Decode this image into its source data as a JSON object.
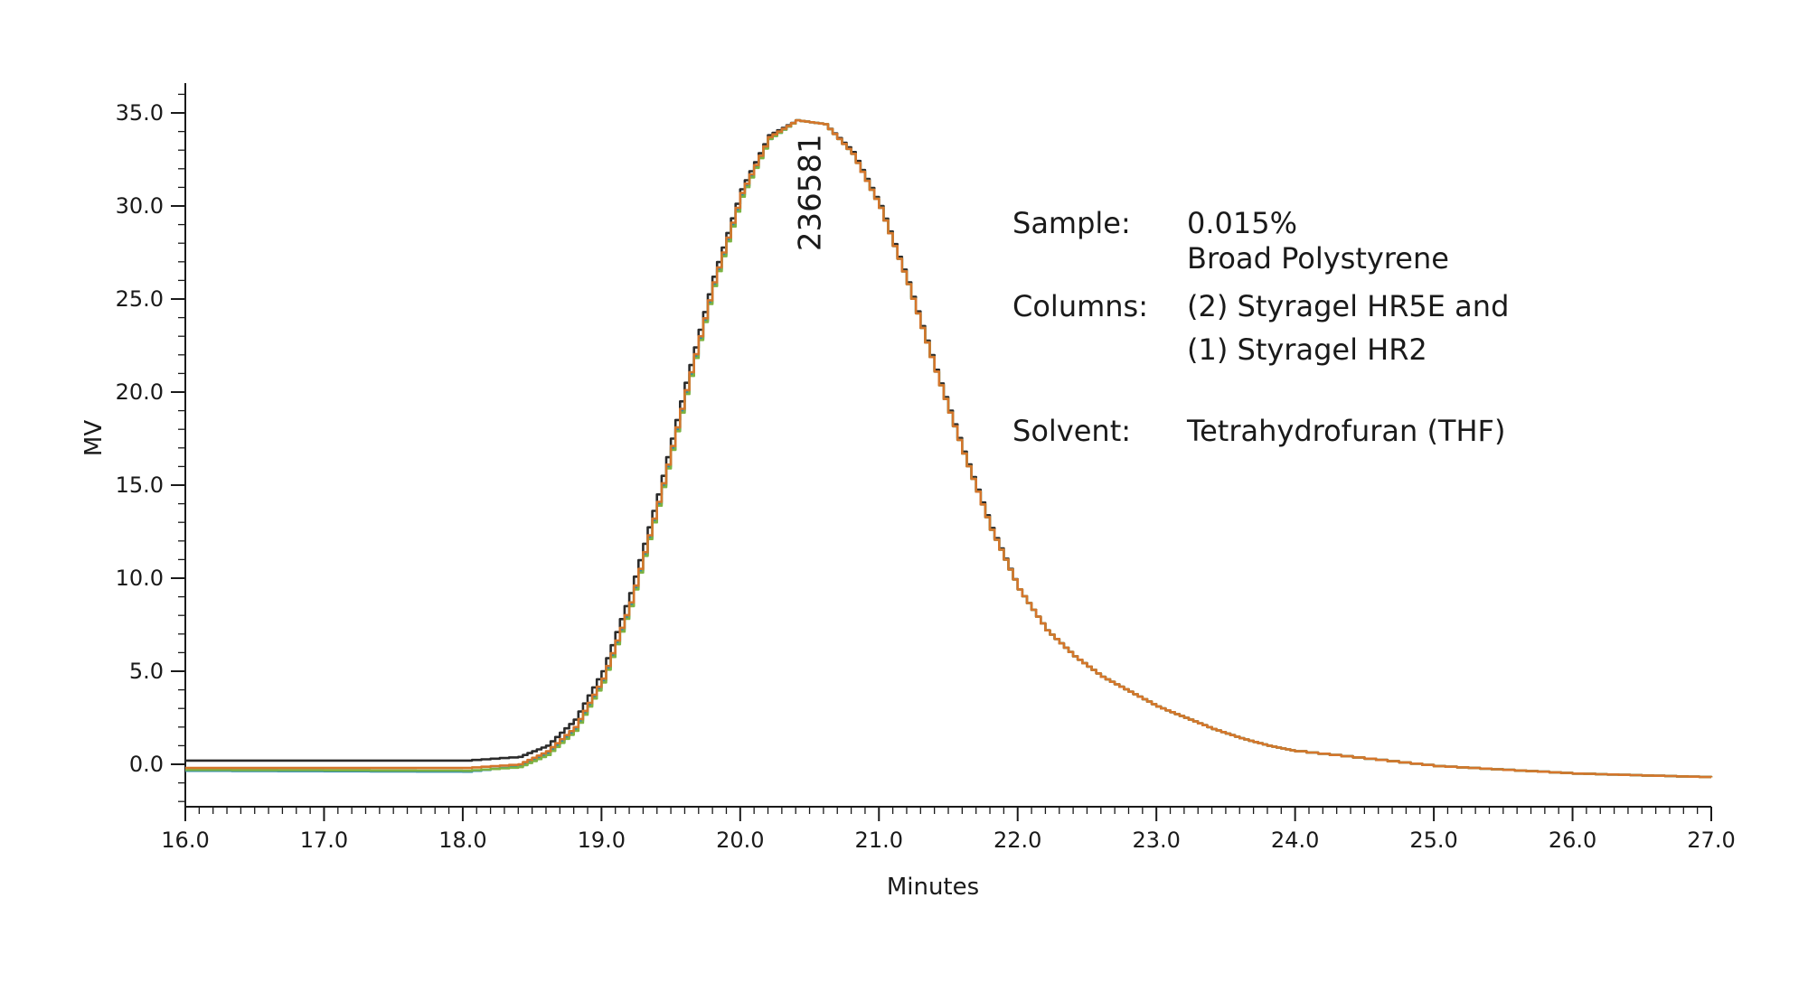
{
  "chart_data": {
    "type": "line",
    "xlabel": "Minutes",
    "ylabel": "MV",
    "xlim": [
      16.0,
      27.0
    ],
    "ylim": [
      -2.2,
      36.5
    ],
    "x_ticks": [
      "16.0",
      "17.0",
      "18.0",
      "19.0",
      "20.0",
      "21.0",
      "22.0",
      "23.0",
      "24.0",
      "25.0",
      "26.0",
      "27.0"
    ],
    "y_ticks": [
      "0.0",
      "5.0",
      "10.0",
      "15.0",
      "20.0",
      "25.0",
      "30.0",
      "35.0"
    ],
    "peak_annotation": {
      "text": "236581",
      "x": 20.5,
      "y": 34.6
    },
    "series": [
      {
        "color": "#2b2b2b",
        "x": [
          16.0,
          18.0,
          18.4,
          18.6,
          18.8,
          19.0,
          19.2,
          19.4,
          19.6,
          19.8,
          20.0,
          20.2,
          20.4,
          20.6,
          20.8,
          21.0,
          21.2,
          21.4,
          21.6,
          21.8,
          22.0,
          22.2,
          22.4,
          22.6,
          22.8,
          23.0,
          23.2,
          23.4,
          23.6,
          23.8,
          24.0,
          24.5,
          25.0,
          25.5,
          26.0,
          26.5,
          27.0
        ],
        "y": [
          0.2,
          0.2,
          0.4,
          1.0,
          2.4,
          5.0,
          9.2,
          14.5,
          20.5,
          26.2,
          30.9,
          33.8,
          34.6,
          34.4,
          32.9,
          30.0,
          25.9,
          21.2,
          16.8,
          12.7,
          9.4,
          7.2,
          5.8,
          4.7,
          3.9,
          3.1,
          2.5,
          1.9,
          1.4,
          1.0,
          0.7,
          0.3,
          -0.1,
          -0.3,
          -0.5,
          -0.6,
          -0.7
        ]
      },
      {
        "color": "#2a8ab0",
        "x": [
          16.0,
          18.0,
          18.4,
          18.6,
          18.8,
          19.0,
          19.2,
          19.4,
          19.6,
          19.8,
          20.0,
          20.2,
          20.4,
          20.6,
          20.8,
          21.0,
          21.2,
          21.4,
          21.6,
          21.8,
          22.0,
          22.2,
          22.4,
          22.6,
          22.8,
          23.0,
          23.2,
          23.4,
          23.6,
          23.8,
          24.0,
          24.5,
          25.0,
          25.5,
          26.0,
          26.5,
          27.0
        ],
        "y": [
          -0.35,
          -0.4,
          -0.1,
          0.6,
          1.9,
          4.5,
          8.6,
          14.0,
          20.0,
          25.8,
          30.6,
          33.6,
          34.6,
          34.4,
          32.8,
          29.9,
          25.8,
          21.1,
          16.7,
          12.6,
          9.4,
          7.2,
          5.8,
          4.7,
          3.9,
          3.1,
          2.5,
          1.9,
          1.4,
          1.0,
          0.7,
          0.3,
          -0.1,
          -0.3,
          -0.5,
          -0.6,
          -0.7
        ]
      },
      {
        "color": "#7cb342",
        "x": [
          16.0,
          18.0,
          18.4,
          18.6,
          18.8,
          19.0,
          19.2,
          19.4,
          19.6,
          19.8,
          20.0,
          20.2,
          20.4,
          20.6,
          20.8,
          21.0,
          21.2,
          21.4,
          21.6,
          21.8,
          22.0,
          22.2,
          22.4,
          22.6,
          22.8,
          23.0,
          23.2,
          23.4,
          23.6,
          23.8,
          24.0,
          24.5,
          25.0,
          25.5,
          26.0,
          26.5,
          27.0
        ],
        "y": [
          -0.3,
          -0.35,
          -0.15,
          0.5,
          1.8,
          4.4,
          8.5,
          13.9,
          19.9,
          25.7,
          30.5,
          33.6,
          34.6,
          34.4,
          32.8,
          29.9,
          25.8,
          21.1,
          16.7,
          12.6,
          9.4,
          7.2,
          5.8,
          4.7,
          3.9,
          3.1,
          2.5,
          1.9,
          1.4,
          1.0,
          0.7,
          0.3,
          -0.1,
          -0.3,
          -0.5,
          -0.6,
          -0.7
        ]
      },
      {
        "color": "#d4762c",
        "x": [
          16.0,
          18.0,
          18.4,
          18.6,
          18.8,
          19.0,
          19.2,
          19.4,
          19.6,
          19.8,
          20.0,
          20.2,
          20.4,
          20.6,
          20.8,
          21.0,
          21.2,
          21.4,
          21.6,
          21.8,
          22.0,
          22.2,
          22.4,
          22.6,
          22.8,
          23.0,
          23.2,
          23.4,
          23.6,
          23.8,
          24.0,
          24.5,
          25.0,
          25.5,
          26.0,
          26.5,
          27.0
        ],
        "y": [
          -0.2,
          -0.2,
          0.0,
          0.7,
          2.0,
          4.6,
          8.7,
          14.1,
          20.1,
          25.9,
          30.7,
          33.7,
          34.6,
          34.4,
          32.8,
          29.9,
          25.8,
          21.1,
          16.7,
          12.6,
          9.4,
          7.2,
          5.8,
          4.7,
          3.9,
          3.1,
          2.5,
          1.9,
          1.4,
          1.0,
          0.7,
          0.3,
          -0.1,
          -0.3,
          -0.5,
          -0.6,
          -0.7
        ]
      }
    ]
  },
  "info_panel": {
    "sample_label": "Sample:",
    "sample_value_line1": "0.015%",
    "sample_value_line2": "Broad Polystyrene",
    "columns_label": "Columns:",
    "columns_value_line1": "(2) Styragel HR5E and",
    "columns_value_line2": "(1) Styragel HR2",
    "solvent_label": "Solvent:",
    "solvent_value": "Tetrahydrofuran (THF)"
  }
}
